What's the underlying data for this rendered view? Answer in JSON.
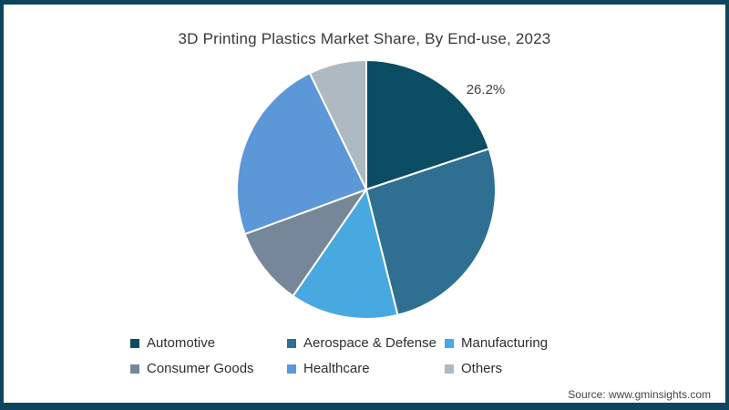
{
  "frame": {
    "border_color": "#0f455c",
    "background": "#ffffff"
  },
  "header": {
    "title": "3D Printing Plastics Market Share, By End-use, 2023"
  },
  "annotation": {
    "text": "26.2%"
  },
  "footer": {
    "source": "Source: www.gminsights.com"
  },
  "chart_data": {
    "type": "pie",
    "title": "3D Printing Plastics Market Share, By End-use, 2023",
    "start_angle_deg": 0,
    "direction": "clockwise",
    "legend_position": "bottom",
    "data_label": {
      "text": "26.2%",
      "series": "Aerospace & Defense",
      "position": "outside-top-right"
    },
    "series": [
      {
        "name": "Automotive",
        "value": 19.9,
        "color": "#0b4d63"
      },
      {
        "name": "Aerospace & Defense",
        "value": 26.2,
        "color": "#2f7092"
      },
      {
        "name": "Manufacturing",
        "value": 13.5,
        "color": "#47a9e0"
      },
      {
        "name": "Consumer Goods",
        "value": 9.8,
        "color": "#76879a"
      },
      {
        "name": "Healthcare",
        "value": 23.4,
        "color": "#5c97d8"
      },
      {
        "name": "Others",
        "value": 7.2,
        "color": "#aeb9c2"
      }
    ]
  }
}
